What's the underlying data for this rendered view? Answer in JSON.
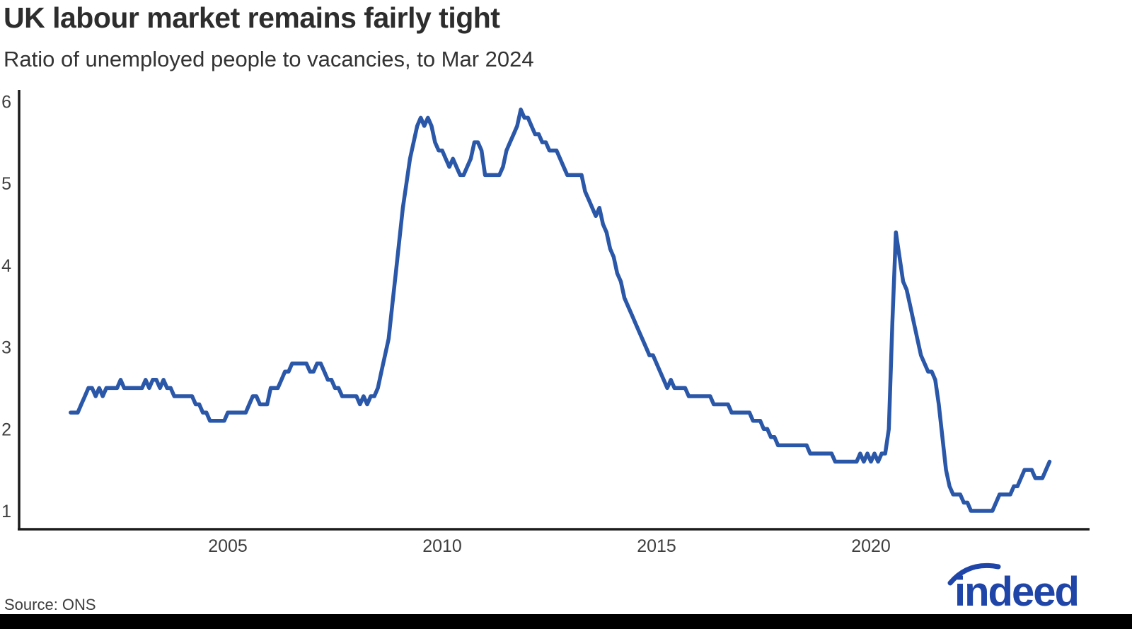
{
  "header": {
    "title": "UK labour market remains fairly tight",
    "subtitle": "Ratio of unemployed people to vacancies, to Mar 2024"
  },
  "footer": {
    "source": "Source: ONS",
    "logo_text": "indeed",
    "logo_color": "#1f45a8"
  },
  "chart_data": {
    "type": "line",
    "title": "UK labour market remains fairly tight",
    "subtitle": "Ratio of unemployed people to vacancies, to Mar 2024",
    "series_name": "Ratio of unemployed people to vacancies",
    "frequency": "monthly",
    "start": "2001-05",
    "end": "2024-03",
    "line_color": "#2a57a8",
    "axis_color": "#1c1c1c",
    "grid": false,
    "legend": false,
    "x_ticks": [
      2005,
      2010,
      2015,
      2020
    ],
    "y_ticks": [
      1,
      2,
      3,
      4,
      5,
      6
    ],
    "ylim": [
      0.78,
      6.13
    ],
    "values": [
      2.2,
      2.2,
      2.2,
      2.3,
      2.4,
      2.5,
      2.5,
      2.4,
      2.5,
      2.4,
      2.5,
      2.5,
      2.5,
      2.5,
      2.6,
      2.5,
      2.5,
      2.5,
      2.5,
      2.5,
      2.5,
      2.6,
      2.5,
      2.6,
      2.6,
      2.5,
      2.6,
      2.5,
      2.5,
      2.4,
      2.4,
      2.4,
      2.4,
      2.4,
      2.4,
      2.3,
      2.3,
      2.2,
      2.2,
      2.1,
      2.1,
      2.1,
      2.1,
      2.1,
      2.2,
      2.2,
      2.2,
      2.2,
      2.2,
      2.2,
      2.3,
      2.4,
      2.4,
      2.3,
      2.3,
      2.3,
      2.5,
      2.5,
      2.5,
      2.6,
      2.7,
      2.7,
      2.8,
      2.8,
      2.8,
      2.8,
      2.8,
      2.7,
      2.7,
      2.8,
      2.8,
      2.7,
      2.6,
      2.6,
      2.5,
      2.5,
      2.4,
      2.4,
      2.4,
      2.4,
      2.4,
      2.3,
      2.4,
      2.3,
      2.4,
      2.4,
      2.5,
      2.7,
      2.9,
      3.1,
      3.5,
      3.9,
      4.3,
      4.7,
      5.0,
      5.3,
      5.5,
      5.7,
      5.8,
      5.7,
      5.8,
      5.7,
      5.5,
      5.4,
      5.4,
      5.3,
      5.2,
      5.3,
      5.2,
      5.1,
      5.1,
      5.2,
      5.3,
      5.5,
      5.5,
      5.4,
      5.1,
      5.1,
      5.1,
      5.1,
      5.1,
      5.2,
      5.4,
      5.5,
      5.6,
      5.7,
      5.9,
      5.8,
      5.8,
      5.7,
      5.6,
      5.6,
      5.5,
      5.5,
      5.4,
      5.4,
      5.4,
      5.3,
      5.2,
      5.1,
      5.1,
      5.1,
      5.1,
      5.1,
      4.9,
      4.8,
      4.7,
      4.6,
      4.7,
      4.5,
      4.4,
      4.2,
      4.1,
      3.9,
      3.8,
      3.6,
      3.5,
      3.4,
      3.3,
      3.2,
      3.1,
      3.0,
      2.9,
      2.9,
      2.8,
      2.7,
      2.6,
      2.5,
      2.6,
      2.5,
      2.5,
      2.5,
      2.5,
      2.4,
      2.4,
      2.4,
      2.4,
      2.4,
      2.4,
      2.4,
      2.3,
      2.3,
      2.3,
      2.3,
      2.3,
      2.2,
      2.2,
      2.2,
      2.2,
      2.2,
      2.2,
      2.1,
      2.1,
      2.1,
      2.0,
      2.0,
      1.9,
      1.9,
      1.8,
      1.8,
      1.8,
      1.8,
      1.8,
      1.8,
      1.8,
      1.8,
      1.8,
      1.7,
      1.7,
      1.7,
      1.7,
      1.7,
      1.7,
      1.7,
      1.6,
      1.6,
      1.6,
      1.6,
      1.6,
      1.6,
      1.6,
      1.7,
      1.6,
      1.7,
      1.6,
      1.7,
      1.6,
      1.7,
      1.7,
      2.0,
      3.3,
      4.4,
      4.1,
      3.8,
      3.7,
      3.5,
      3.3,
      3.1,
      2.9,
      2.8,
      2.7,
      2.7,
      2.6,
      2.3,
      1.9,
      1.5,
      1.3,
      1.2,
      1.2,
      1.2,
      1.1,
      1.1,
      1.0,
      1.0,
      1.0,
      1.0,
      1.0,
      1.0,
      1.0,
      1.1,
      1.2,
      1.2,
      1.2,
      1.2,
      1.3,
      1.3,
      1.4,
      1.5,
      1.5,
      1.5,
      1.4,
      1.4,
      1.4,
      1.5,
      1.6
    ]
  }
}
